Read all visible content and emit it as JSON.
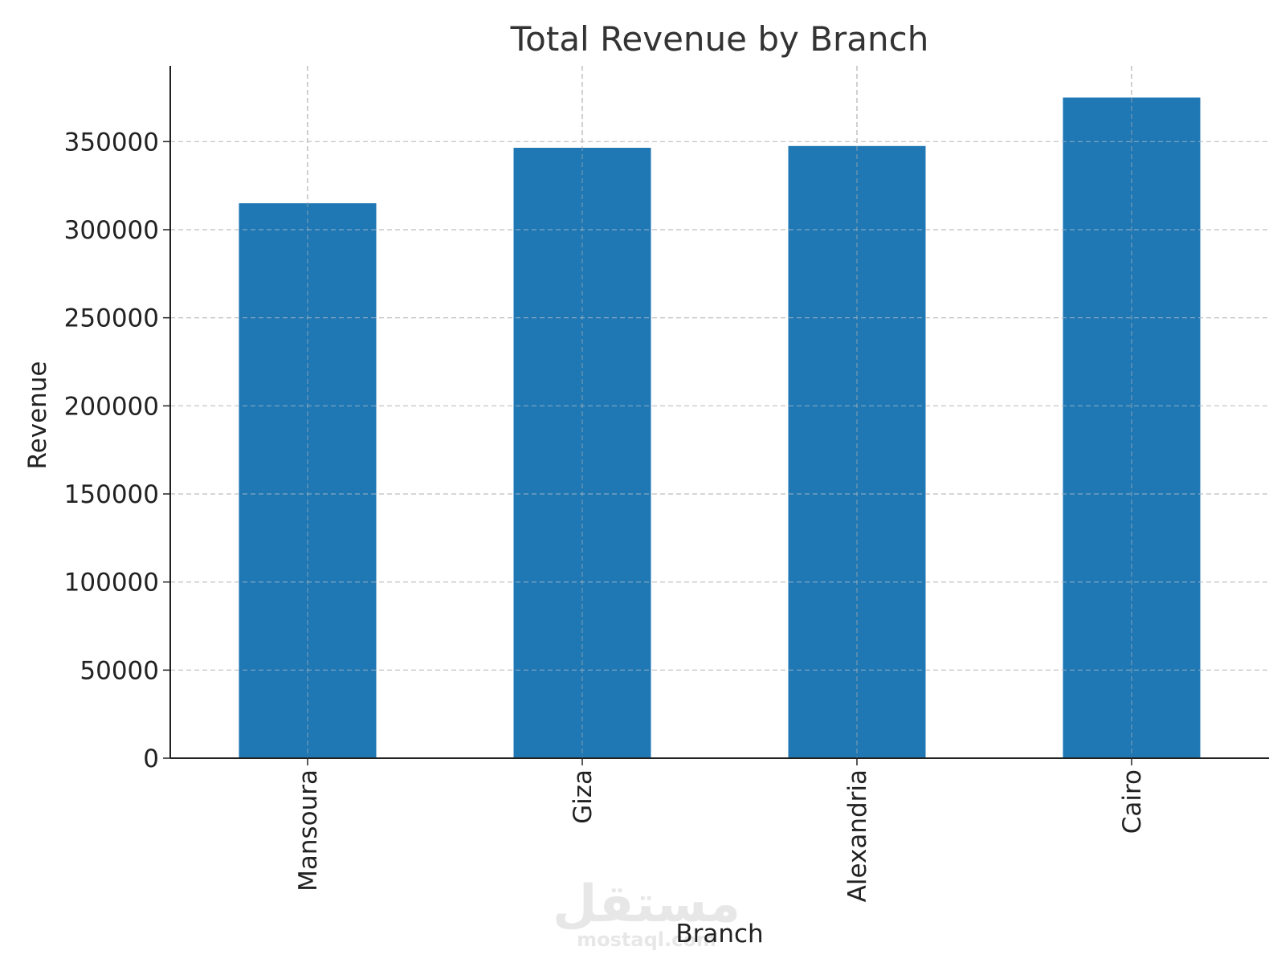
{
  "chart_data": {
    "type": "bar",
    "title": "Total Revenue by Branch",
    "xlabel": "Branch",
    "ylabel": "Revenue",
    "categories": [
      "Mansoura",
      "Giza",
      "Alexandria",
      "Cairo"
    ],
    "values": [
      315000,
      346500,
      347500,
      375000
    ],
    "ylim": [
      0,
      393000
    ],
    "yticks": [
      0,
      50000,
      100000,
      150000,
      200000,
      250000,
      300000,
      350000
    ],
    "grid": true,
    "bar_color": "#1f77b4"
  },
  "watermark": {
    "arabic": "مستقل",
    "latin": "mostaql.com"
  }
}
